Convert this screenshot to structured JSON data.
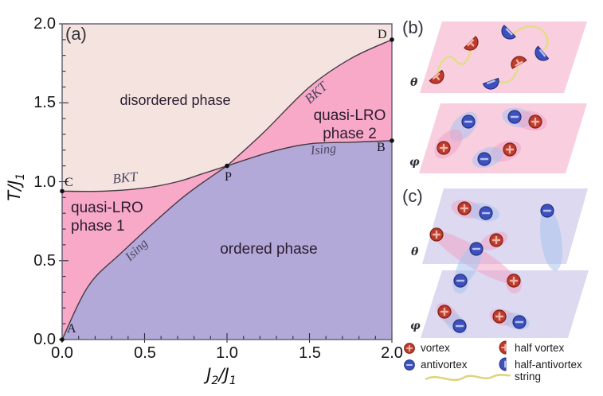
{
  "panel_a": {
    "label": "(a)",
    "axis": {
      "ylabel": {
        "main": "T/J",
        "sub": "1"
      },
      "xlabel": {
        "p0": "J",
        "p1": "2",
        "p2": "/J",
        "p3": "1"
      },
      "yticks": [
        "2.0",
        "1.5",
        "1.0",
        "0.5",
        "0.0"
      ],
      "xticks": [
        "0.0",
        "0.5",
        "1.0",
        "1.5",
        "2.0"
      ]
    },
    "regions": {
      "disordered": "disordered phase",
      "qlro1_l1": "quasi-LRO",
      "qlro1_l2": "phase 1",
      "qlro2_l1": "quasi-LRO",
      "qlro2_l2": "phase 2",
      "ordered": "ordered phase"
    },
    "boundaries": {
      "bkt_left": "BKT",
      "bkt_right": "BKT",
      "ising_left": "Ising",
      "ising_right": "Ising"
    },
    "points": {
      "A": "A",
      "B": "B",
      "C": "C",
      "D": "D",
      "P": "P"
    }
  },
  "panel_b": {
    "label": "(b)",
    "theta": "θ",
    "phi": "φ"
  },
  "panel_c": {
    "label": "(c)",
    "theta": "θ",
    "phi": "φ"
  },
  "legend": {
    "vortex": "vortex",
    "antivortex": "antivortex",
    "half_vortex": "half vortex",
    "half_antivortex": "half-antivortex",
    "string": "string"
  },
  "colors": {
    "disordered": "#f5e3e0",
    "quasi_lro": "#f8a9c8",
    "ordered": "#b3a9d8",
    "boundary": "#453a44",
    "frame": "#5f5a72",
    "plane_pink": "#f9cfe0",
    "plane_lavender": "#dcd9f0",
    "vortex_red": "#bf3b2c",
    "antivortex_blue": "#3e50be",
    "string_yellow": "#e3dc8b",
    "blob_pink": "#f0a0c4",
    "blob_blue": "#a9c2ee"
  },
  "chart_data": {
    "type": "area",
    "title": "phase diagram",
    "xlabel": "J2/J1",
    "ylabel": "T/J1",
    "xlim": [
      0,
      2
    ],
    "ylim": [
      0,
      2
    ],
    "grid": false,
    "regions": [
      "disordered phase",
      "quasi-LRO phase 1",
      "quasi-LRO phase 2",
      "ordered phase"
    ],
    "critical_points": {
      "A": [
        0.0,
        0.0
      ],
      "C": [
        0.0,
        0.94
      ],
      "P": [
        1.0,
        1.1
      ],
      "B": [
        2.0,
        1.26
      ],
      "D": [
        2.0,
        1.9
      ]
    },
    "boundaries": [
      {
        "name": "BKT line C-P",
        "x": [
          0,
          0.25,
          0.5,
          0.7,
          0.85,
          1.0
        ],
        "y": [
          0.94,
          0.94,
          0.96,
          1.0,
          1.05,
          1.1
        ]
      },
      {
        "name": "Ising line A-P",
        "x": [
          0,
          0.16,
          0.36,
          0.72,
          1.0
        ],
        "y": [
          0.0,
          0.34,
          0.55,
          0.89,
          1.1
        ]
      },
      {
        "name": "BKT line P-D",
        "x": [
          1.0,
          1.22,
          1.5,
          1.75,
          2.0
        ],
        "y": [
          1.1,
          1.31,
          1.6,
          1.78,
          1.9
        ]
      },
      {
        "name": "Ising line P-B",
        "x": [
          1.0,
          1.27,
          1.5,
          1.75,
          2.0
        ],
        "y": [
          1.1,
          1.19,
          1.24,
          1.25,
          1.26
        ]
      }
    ]
  }
}
